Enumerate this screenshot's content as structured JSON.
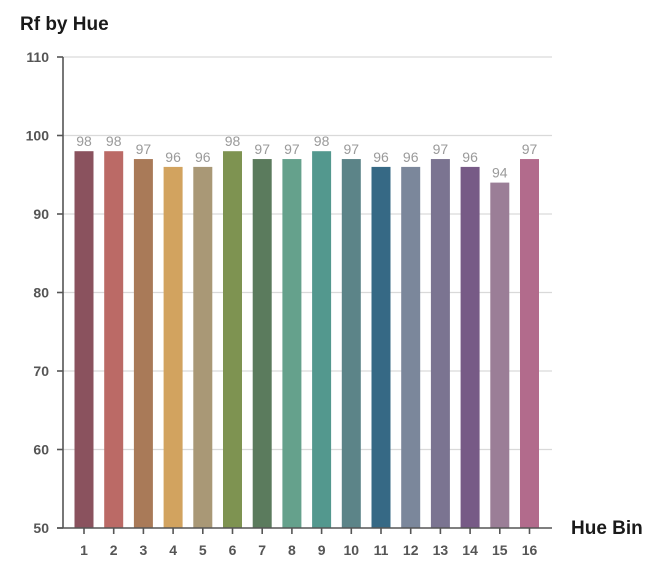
{
  "chart_data": {
    "type": "bar",
    "title": "Rf by Hue",
    "xlabel": "Hue Bin",
    "ylabel": "",
    "ylim": [
      50,
      110
    ],
    "yticks": [
      50,
      60,
      70,
      80,
      90,
      100,
      110
    ],
    "grid": true,
    "categories": [
      "1",
      "2",
      "3",
      "4",
      "5",
      "6",
      "7",
      "8",
      "9",
      "10",
      "11",
      "12",
      "13",
      "14",
      "15",
      "16"
    ],
    "values": [
      98,
      98,
      97,
      96,
      96,
      98,
      97,
      97,
      98,
      97,
      96,
      96,
      97,
      96,
      94,
      97
    ],
    "colors": [
      "#8a525e",
      "#bb6a66",
      "#a97a58",
      "#d2a35f",
      "#a99876",
      "#7e9351",
      "#5b7b5d",
      "#65a18c",
      "#53988e",
      "#5c8488",
      "#366985",
      "#7b879b",
      "#7b7491",
      "#775a86",
      "#9b7e97",
      "#b26b8c"
    ],
    "gridColor": "#d9d9d9",
    "axisColor": "#555555",
    "labelColor": "#9a9a9a"
  }
}
